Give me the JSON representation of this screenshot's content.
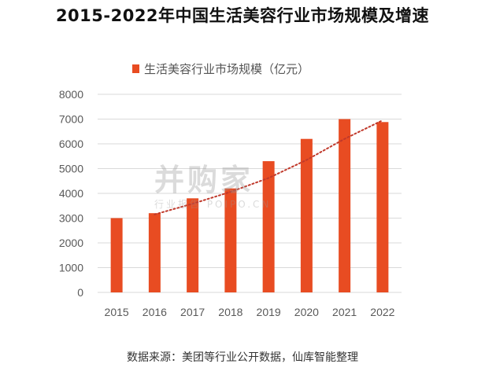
{
  "title": "2015-2022年中国生活美容行业市场规模及增速",
  "source": "数据来源：美团等行业公开数据，仙库智能整理",
  "watermark": {
    "brand": "并购家",
    "sub": "行业报告 POIPO.CN"
  },
  "colors": {
    "bar": "#e84c22",
    "trend": "#c0392b",
    "grid": "#d9d9d9"
  },
  "chart_data": {
    "type": "bar",
    "categories": [
      "2015",
      "2016",
      "2017",
      "2018",
      "2019",
      "2020",
      "2021",
      "2022"
    ],
    "series": [
      {
        "name": "生活美容行业市场规模（亿元）",
        "values": [
          3000,
          3200,
          3800,
          4200,
          5300,
          6200,
          7000,
          6880
        ]
      }
    ],
    "trendline": {
      "type": "polynomial",
      "style": "dotted",
      "from_category": "2016",
      "to_category": "2022",
      "values": [
        3150,
        3580,
        4060,
        4620,
        5350,
        6200,
        6950
      ]
    },
    "ylim": [
      0,
      8000
    ],
    "yticks": [
      0,
      1000,
      2000,
      3000,
      4000,
      5000,
      6000,
      7000,
      8000
    ],
    "grid": true,
    "legend": "top"
  }
}
